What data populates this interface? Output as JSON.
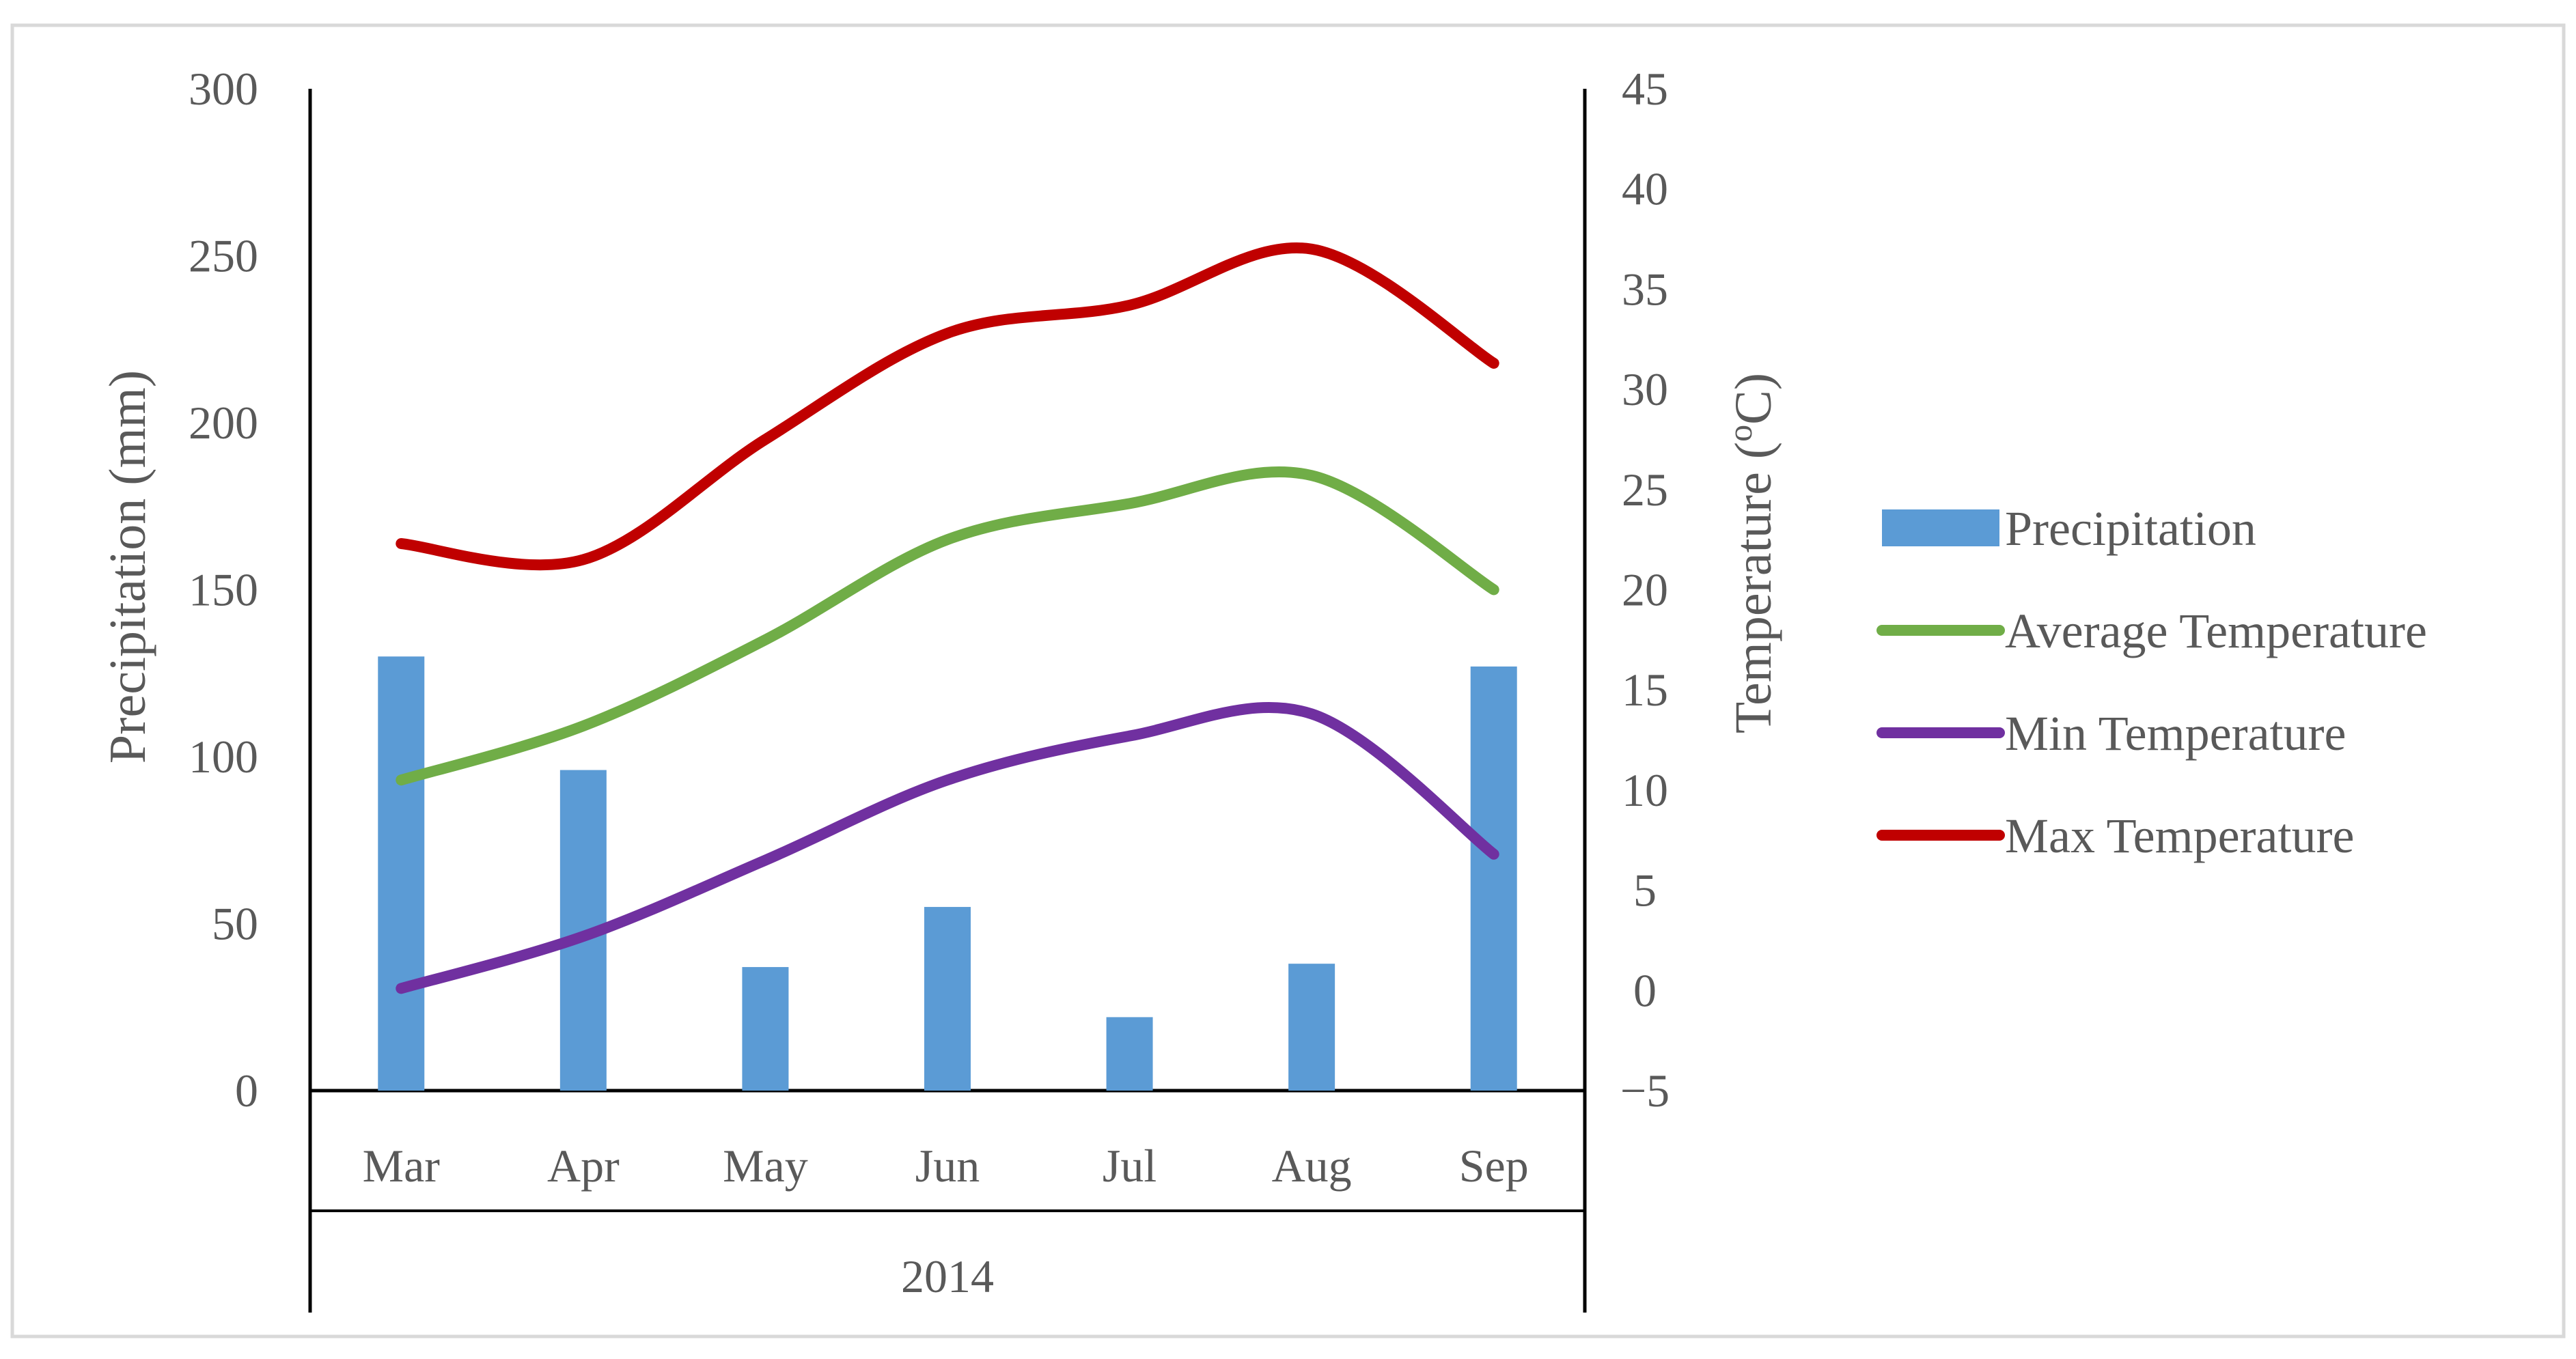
{
  "chart_data": {
    "type": "bar+line",
    "title": "",
    "categories": [
      "Mar",
      "Apr",
      "May",
      "Jun",
      "Jul",
      "Aug",
      "Sep"
    ],
    "group_label": "2014",
    "y_left": {
      "label": "Precipitation (mm)",
      "range": [
        0,
        300
      ],
      "ticks": [
        "0",
        "50",
        "100",
        "150",
        "200",
        "250",
        "300"
      ]
    },
    "y_right": {
      "label": "Temperature (oC)",
      "label_base": "Temperature (",
      "label_sup": "o",
      "label_end": "C)",
      "range": [
        -5,
        45
      ],
      "ticks": [
        "−5",
        "0",
        "5",
        "10",
        "15",
        "20",
        "25",
        "30",
        "35",
        "40",
        "45"
      ]
    },
    "series": [
      {
        "name": "Precipitation",
        "type": "bar",
        "axis": "left",
        "color": "#5b9bd5",
        "values": [
          130,
          96,
          37,
          55,
          22,
          38,
          127
        ]
      },
      {
        "name": "Average Temperature",
        "type": "line",
        "axis": "right",
        "color": "#70ad47",
        "values": [
          10.5,
          13.2,
          17.5,
          22.5,
          24.3,
          25.7,
          20.0
        ]
      },
      {
        "name": "Min Temperature",
        "type": "line",
        "axis": "right",
        "color": "#7030a0",
        "values": [
          0.1,
          2.7,
          6.5,
          10.5,
          12.7,
          13.8,
          6.8
        ]
      },
      {
        "name": "Max Temperature",
        "type": "line",
        "axis": "right",
        "color": "#c00000",
        "values": [
          22.3,
          21.5,
          27.5,
          32.8,
          34.2,
          37.0,
          31.3
        ]
      }
    ],
    "legend_position": "right",
    "grid": false
  }
}
